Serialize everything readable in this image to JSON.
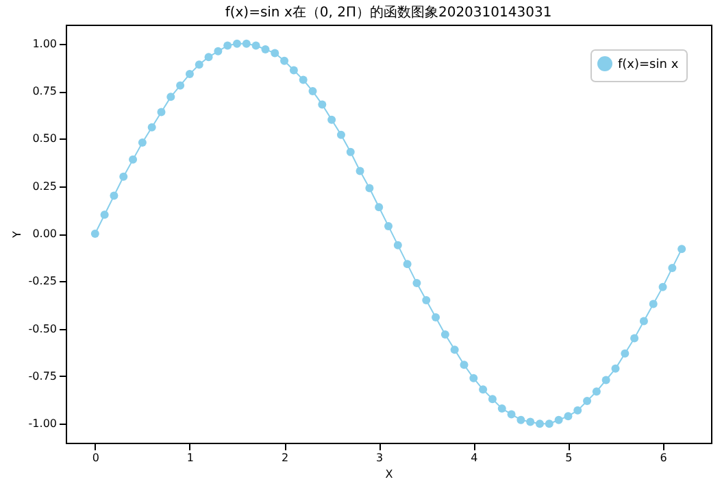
{
  "chart_data": {
    "type": "line",
    "title": "f(x)=sin x在（0, 2Π）的函数图象2020310143031",
    "xlabel": "X",
    "ylabel": "Y",
    "x": [
      0,
      0.1,
      0.2,
      0.3,
      0.4,
      0.5,
      0.6,
      0.7,
      0.8,
      0.9,
      1.0,
      1.1,
      1.2,
      1.3,
      1.4,
      1.5,
      1.6,
      1.7,
      1.8,
      1.9,
      2.0,
      2.1,
      2.2,
      2.3,
      2.4,
      2.5,
      2.6,
      2.7,
      2.8,
      2.9,
      3.0,
      3.1,
      3.2,
      3.3,
      3.4,
      3.5,
      3.6,
      3.7,
      3.8,
      3.9,
      4.0,
      4.1,
      4.2,
      4.3,
      4.4,
      4.5,
      4.6,
      4.7,
      4.8,
      4.9,
      5.0,
      5.1,
      5.2,
      5.3,
      5.4,
      5.5,
      5.6,
      5.7,
      5.8,
      5.9,
      6.0,
      6.1,
      6.2
    ],
    "series": [
      {
        "name": "f(x)=sin x",
        "color": "#87ceeb",
        "values": [
          0.0,
          0.1,
          0.2,
          0.3,
          0.39,
          0.48,
          0.56,
          0.64,
          0.72,
          0.78,
          0.84,
          0.89,
          0.93,
          0.96,
          0.99,
          1.0,
          1.0,
          0.99,
          0.97,
          0.95,
          0.91,
          0.86,
          0.81,
          0.75,
          0.68,
          0.6,
          0.52,
          0.43,
          0.33,
          0.24,
          0.14,
          0.04,
          -0.06,
          -0.16,
          -0.26,
          -0.35,
          -0.44,
          -0.53,
          -0.61,
          -0.69,
          -0.76,
          -0.82,
          -0.87,
          -0.92,
          -0.95,
          -0.98,
          -0.99,
          -1.0,
          -1.0,
          -0.98,
          -0.96,
          -0.93,
          -0.88,
          -0.83,
          -0.77,
          -0.71,
          -0.63,
          -0.55,
          -0.46,
          -0.37,
          -0.28,
          -0.18,
          -0.08
        ]
      }
    ],
    "xlim": [
      -0.31,
      6.51
    ],
    "xticks": [
      0,
      1,
      2,
      3,
      4,
      5,
      6
    ],
    "ylim": [
      -1.1,
      1.1
    ],
    "yticks": [
      {
        "value": -1,
        "label": "-1.00"
      },
      {
        "value": -0.75,
        "label": "-0.75"
      },
      {
        "value": -0.5,
        "label": "-0.50"
      },
      {
        "value": -0.25,
        "label": "-0.25"
      },
      {
        "value": 0,
        "label": "0.00"
      },
      {
        "value": 0.25,
        "label": "0.25"
      },
      {
        "value": 0.5,
        "label": "0.50"
      },
      {
        "value": 0.75,
        "label": "0.75"
      },
      {
        "value": 1,
        "label": "1.00"
      }
    ],
    "marker": "circle",
    "legend": "top right",
    "grid": false
  }
}
